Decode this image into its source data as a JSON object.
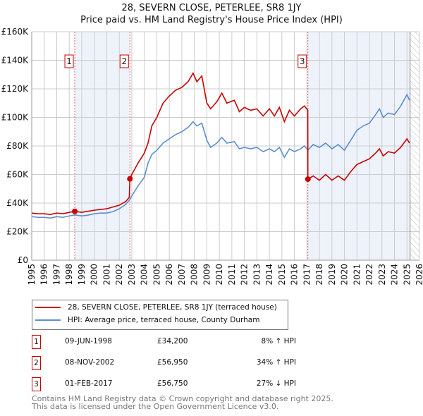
{
  "chart_data": {
    "type": "line",
    "title": "28, SEVERN CLOSE, PETERLEE, SR8 1JY",
    "subtitle": "Price paid vs. HM Land Registry's House Price Index (HPI)",
    "xlim": [
      1995,
      2026
    ],
    "ylim": [
      0,
      160000
    ],
    "x_ticks": [
      "1995",
      "1996",
      "1997",
      "1998",
      "1999",
      "2000",
      "2001",
      "2002",
      "2003",
      "2004",
      "2005",
      "2006",
      "2007",
      "2008",
      "2009",
      "2010",
      "2011",
      "2012",
      "2013",
      "2014",
      "2015",
      "2016",
      "2017",
      "2018",
      "2019",
      "2020",
      "2021",
      "2022",
      "2023",
      "2024",
      "2025",
      "2026"
    ],
    "y_ticks": [
      {
        "v": 0,
        "label": "£0"
      },
      {
        "v": 20000,
        "label": "£20K"
      },
      {
        "v": 40000,
        "label": "£40K"
      },
      {
        "v": 60000,
        "label": "£60K"
      },
      {
        "v": 80000,
        "label": "£80K"
      },
      {
        "v": 100000,
        "label": "£100K"
      },
      {
        "v": 120000,
        "label": "£120K"
      },
      {
        "v": 140000,
        "label": "£140K"
      },
      {
        "v": 160000,
        "label": "£160K"
      }
    ],
    "grid": true,
    "series": [
      {
        "name": "28, SEVERN CLOSE, PETERLEE, SR8 1JY (terraced house)",
        "color": "#cc0000",
        "x": [
          1995,
          1995.5,
          1996,
          1996.5,
          1997,
          1997.5,
          1998,
          1998.44,
          1999,
          2000,
          2001,
          2002,
          2002.5,
          2002.8,
          2002.85,
          2003,
          2003.5,
          2004,
          2004.3,
          2004.6,
          2005,
          2005.5,
          2006,
          2006.5,
          2007,
          2007.5,
          2007.9,
          2008.2,
          2008.6,
          2009,
          2009.3,
          2009.8,
          2010.2,
          2010.6,
          2011.2,
          2011.6,
          2012,
          2012.5,
          2013,
          2013.5,
          2014,
          2014.4,
          2014.8,
          2015.2,
          2015.6,
          2016,
          2016.5,
          2016.8,
          2017.07,
          2017.08,
          2017.5,
          2018,
          2018.5,
          2019,
          2019.5,
          2020,
          2020.5,
          2021,
          2021.5,
          2022,
          2022.5,
          2022.8,
          2023.1,
          2023.5,
          2024,
          2024.5,
          2025,
          2025.2
        ],
        "y": [
          33000,
          32500,
          32500,
          32000,
          33000,
          32500,
          33500,
          34200,
          33500,
          35000,
          36000,
          38500,
          41000,
          44000,
          56950,
          60000,
          68000,
          75000,
          82000,
          94000,
          100000,
          110000,
          115000,
          119000,
          121000,
          125000,
          131000,
          125000,
          129000,
          110000,
          106000,
          111000,
          117000,
          110000,
          112000,
          104000,
          107000,
          105000,
          106000,
          101000,
          106000,
          101000,
          107000,
          97000,
          105000,
          101000,
          106000,
          108000,
          105000,
          56750,
          59000,
          56000,
          60000,
          56000,
          59000,
          56000,
          62000,
          67000,
          69000,
          71000,
          75000,
          78000,
          73000,
          76000,
          75000,
          79000,
          85000,
          82000
        ]
      },
      {
        "name": "HPI: Average price, terraced house, County Durham",
        "color": "#5b8fd0",
        "x": [
          1995,
          1995.5,
          1996,
          1996.5,
          1997,
          1997.5,
          1998,
          1998.44,
          1999,
          1999.5,
          2000,
          2000.5,
          2001,
          2001.5,
          2002,
          2002.5,
          2002.85,
          2003,
          2003.5,
          2004,
          2004.3,
          2004.6,
          2005,
          2005.5,
          2006,
          2006.5,
          2007,
          2007.5,
          2007.9,
          2008.2,
          2008.6,
          2009,
          2009.3,
          2009.8,
          2010.2,
          2010.6,
          2011.2,
          2011.6,
          2012,
          2012.5,
          2013,
          2013.5,
          2014,
          2014.4,
          2014.8,
          2015.2,
          2015.6,
          2016,
          2016.5,
          2016.8,
          2017.08,
          2017.5,
          2018,
          2018.5,
          2019,
          2019.5,
          2020,
          2020.5,
          2021,
          2021.5,
          2022,
          2022.5,
          2022.8,
          2023.1,
          2023.5,
          2024,
          2024.5,
          2025,
          2025.2
        ],
        "y": [
          30500,
          30000,
          30000,
          29500,
          30500,
          30000,
          31000,
          31700,
          31000,
          31500,
          32500,
          33000,
          33000,
          34000,
          36000,
          39000,
          42500,
          45000,
          52000,
          58000,
          68000,
          74000,
          77000,
          82000,
          85000,
          88000,
          90000,
          93000,
          97000,
          94000,
          96000,
          84000,
          79000,
          82000,
          86000,
          82000,
          83000,
          78000,
          79000,
          78000,
          79000,
          76000,
          78000,
          76000,
          79000,
          72000,
          78000,
          76000,
          78000,
          80000,
          77000,
          81000,
          79000,
          82000,
          78000,
          81000,
          77000,
          84000,
          91000,
          94000,
          96000,
          102000,
          106000,
          100000,
          103000,
          102000,
          108000,
          116000,
          112000
        ]
      }
    ],
    "sales": [
      {
        "n": "1",
        "x": 1998.44,
        "y": 34200,
        "date": "09-JUN-1998",
        "price": "£34,200",
        "hpi": "8% ↑ HPI"
      },
      {
        "n": "2",
        "x": 2002.85,
        "y": 56950,
        "date": "08-NOV-2002",
        "price": "£56,950",
        "hpi": "34% ↑ HPI"
      },
      {
        "n": "3",
        "x": 2017.08,
        "y": 56750,
        "date": "01-FEB-2017",
        "price": "£56,750",
        "hpi": "27% ↓ HPI"
      }
    ],
    "shaded": [
      [
        1998.44,
        2002.85
      ],
      [
        2017.08,
        2025.25
      ]
    ],
    "hatched_from": 2025.25,
    "legend": "below"
  },
  "footer": [
    "Contains HM Land Registry data © Crown copyright and database right 2025.",
    "This data is licensed under the Open Government Licence v3.0."
  ]
}
